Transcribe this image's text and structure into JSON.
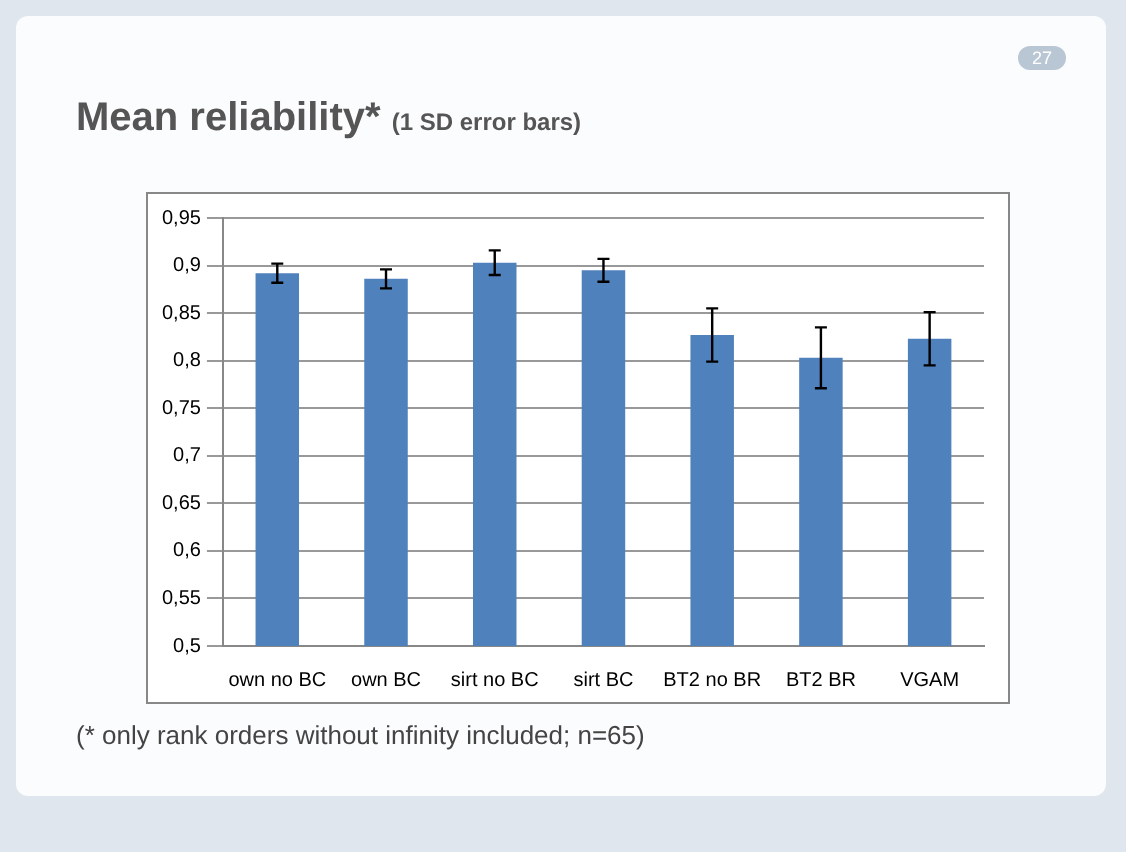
{
  "chart_data": {
    "type": "bar",
    "title": "Mean reliability*",
    "subtitle": "(1 SD error bars)",
    "categories": [
      "own no BC",
      "own BC",
      "sirt no BC",
      "sirt BC",
      "BT2 no BR",
      "BT2 BR",
      "VGAM"
    ],
    "values": [
      0.892,
      0.886,
      0.903,
      0.895,
      0.827,
      0.803,
      0.823
    ],
    "errors": [
      0.01,
      0.01,
      0.013,
      0.012,
      0.028,
      0.032,
      0.028
    ],
    "color": "#4f81bd",
    "ylim": [
      0.5,
      0.95
    ],
    "yticks": [
      {
        "value": 0.5,
        "label": "0,5"
      },
      {
        "value": 0.55,
        "label": "0,55"
      },
      {
        "value": 0.6,
        "label": "0,6"
      },
      {
        "value": 0.65,
        "label": "0,65"
      },
      {
        "value": 0.7,
        "label": "0,7"
      },
      {
        "value": 0.75,
        "label": "0,75"
      },
      {
        "value": 0.8,
        "label": "0,8"
      },
      {
        "value": 0.85,
        "label": "0,85"
      },
      {
        "value": 0.9,
        "label": "0,9"
      },
      {
        "value": 0.95,
        "label": "0,95"
      }
    ],
    "grid": "y",
    "annotations": [
      "(* only rank orders without infinity included; n=65)",
      "27"
    ]
  }
}
